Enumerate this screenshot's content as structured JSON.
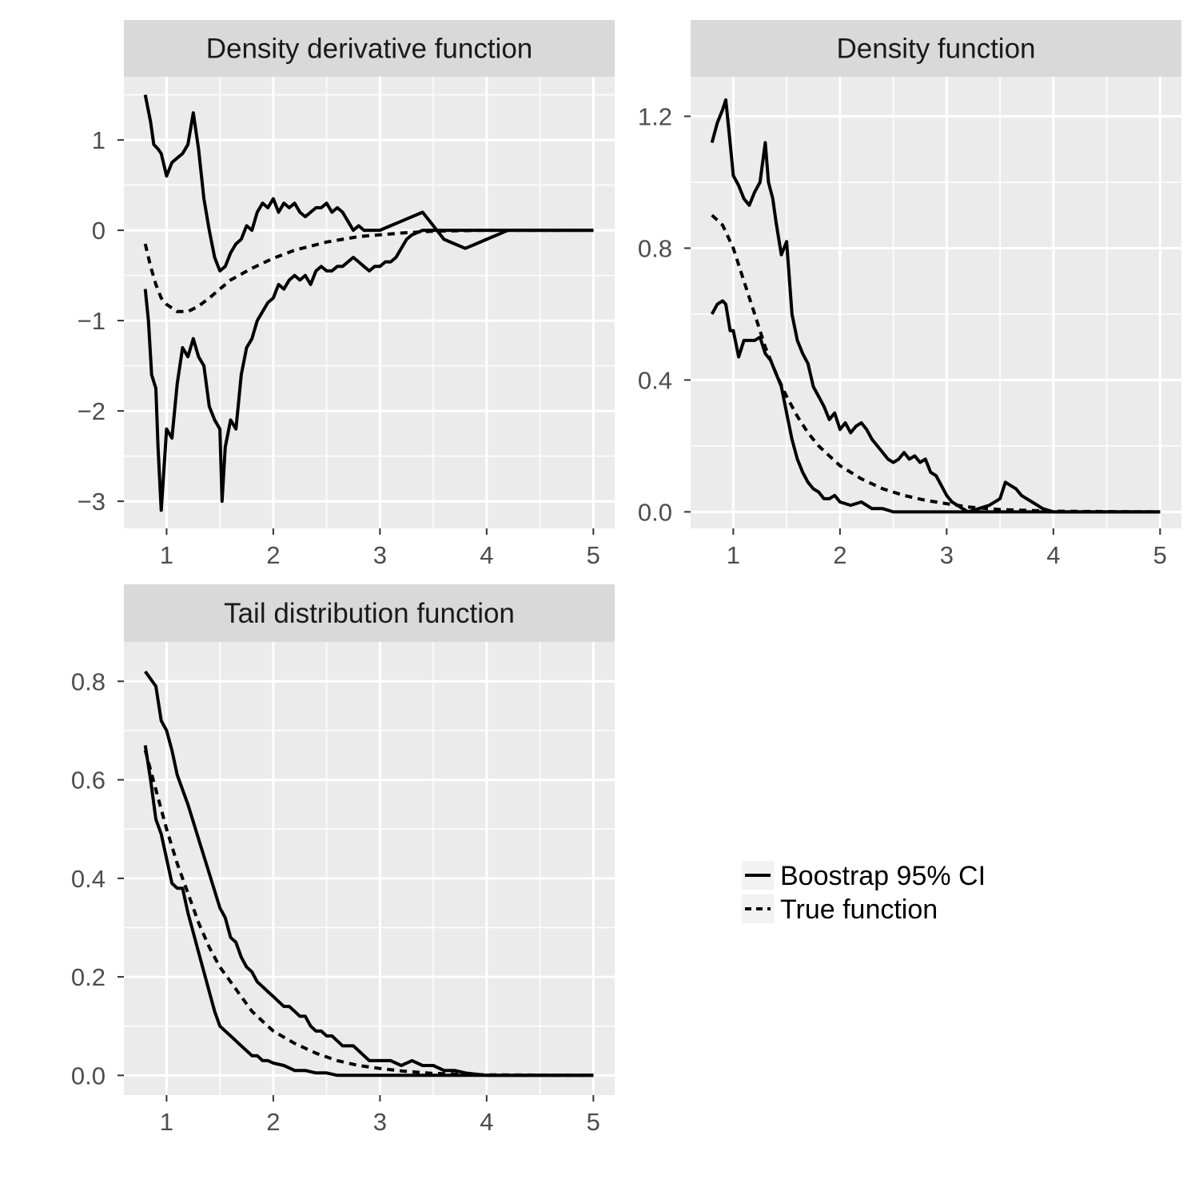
{
  "colors": {
    "panel_background": "#ebebeb",
    "strip_background": "#d9d9d9",
    "grid": "#ffffff",
    "line": "#000000",
    "tick_text": "#4d4d4d"
  },
  "legend": {
    "position": "right",
    "items": [
      {
        "label": "Boostrap 95% CI",
        "linetype": "solid"
      },
      {
        "label": "True function",
        "linetype": "dashed"
      }
    ]
  },
  "chart_data": [
    {
      "type": "line",
      "title": "Density derivative function",
      "xlim": [
        0.6,
        5.2
      ],
      "ylim": [
        -3.3,
        1.7
      ],
      "x_ticks": [
        1,
        2,
        3,
        4,
        5
      ],
      "x_tick_labels": [
        "1",
        "2",
        "3",
        "4",
        "5"
      ],
      "y_ticks": [
        -3,
        -2,
        -1,
        0,
        1
      ],
      "y_tick_labels": [
        "−3",
        "−2",
        "−1",
        "0",
        "1"
      ],
      "grid": true,
      "series": [
        {
          "role": "ci_upper",
          "legend": "Boostrap 95% CI",
          "linetype": "solid",
          "x": [
            0.8,
            0.85,
            0.88,
            0.92,
            0.95,
            1.0,
            1.05,
            1.1,
            1.15,
            1.2,
            1.25,
            1.3,
            1.35,
            1.4,
            1.45,
            1.5,
            1.55,
            1.6,
            1.65,
            1.7,
            1.75,
            1.8,
            1.85,
            1.9,
            1.95,
            2.0,
            2.05,
            2.1,
            2.15,
            2.2,
            2.25,
            2.3,
            2.35,
            2.4,
            2.45,
            2.5,
            2.55,
            2.6,
            2.65,
            2.7,
            2.75,
            2.8,
            2.85,
            2.9,
            2.95,
            3.0,
            3.1,
            3.2,
            3.3,
            3.4,
            3.5,
            3.6,
            3.7,
            3.8,
            3.9,
            4.0,
            4.1,
            4.2,
            4.5,
            5.0
          ],
          "y": [
            1.5,
            1.2,
            0.95,
            0.9,
            0.85,
            0.6,
            0.75,
            0.8,
            0.85,
            0.95,
            1.3,
            0.9,
            0.35,
            0.0,
            -0.3,
            -0.45,
            -0.4,
            -0.25,
            -0.15,
            -0.1,
            0.05,
            0.0,
            0.2,
            0.3,
            0.25,
            0.35,
            0.2,
            0.3,
            0.25,
            0.3,
            0.2,
            0.15,
            0.2,
            0.25,
            0.25,
            0.3,
            0.2,
            0.25,
            0.2,
            0.1,
            0.0,
            0.05,
            0.0,
            0.0,
            0.0,
            0.0,
            0.05,
            0.1,
            0.15,
            0.2,
            0.05,
            -0.1,
            -0.15,
            -0.2,
            -0.15,
            -0.1,
            -0.05,
            0.0,
            0.0,
            0.0
          ]
        },
        {
          "role": "ci_lower",
          "legend": "Boostrap 95% CI",
          "linetype": "solid",
          "x": [
            0.8,
            0.83,
            0.86,
            0.9,
            0.92,
            0.95,
            1.0,
            1.05,
            1.1,
            1.15,
            1.2,
            1.25,
            1.3,
            1.35,
            1.4,
            1.45,
            1.5,
            1.52,
            1.55,
            1.6,
            1.65,
            1.7,
            1.75,
            1.8,
            1.85,
            1.9,
            1.95,
            2.0,
            2.05,
            2.1,
            2.15,
            2.2,
            2.25,
            2.3,
            2.35,
            2.4,
            2.45,
            2.5,
            2.55,
            2.6,
            2.65,
            2.7,
            2.75,
            2.8,
            2.85,
            2.9,
            2.95,
            3.0,
            3.05,
            3.1,
            3.15,
            3.2,
            3.25,
            3.3,
            3.4,
            3.5,
            3.6,
            4.0,
            5.0
          ],
          "y": [
            -0.65,
            -1.0,
            -1.6,
            -1.75,
            -2.4,
            -3.1,
            -2.2,
            -2.3,
            -1.7,
            -1.3,
            -1.4,
            -1.2,
            -1.4,
            -1.5,
            -1.95,
            -2.1,
            -2.2,
            -3.0,
            -2.4,
            -2.1,
            -2.2,
            -1.6,
            -1.3,
            -1.2,
            -1.0,
            -0.9,
            -0.8,
            -0.75,
            -0.6,
            -0.65,
            -0.55,
            -0.5,
            -0.55,
            -0.5,
            -0.6,
            -0.45,
            -0.4,
            -0.45,
            -0.45,
            -0.4,
            -0.4,
            -0.35,
            -0.3,
            -0.35,
            -0.4,
            -0.45,
            -0.4,
            -0.4,
            -0.35,
            -0.35,
            -0.3,
            -0.2,
            -0.1,
            -0.05,
            0.0,
            0.0,
            0.0,
            0.0,
            0.0
          ]
        },
        {
          "role": "true",
          "legend": "True function",
          "linetype": "dashed",
          "x": [
            0.8,
            0.85,
            0.9,
            0.95,
            1.0,
            1.1,
            1.2,
            1.3,
            1.4,
            1.5,
            1.6,
            1.8,
            2.0,
            2.2,
            2.5,
            2.8,
            3.0,
            3.2,
            3.5,
            4.0,
            5.0
          ],
          "y": [
            -0.15,
            -0.4,
            -0.6,
            -0.75,
            -0.82,
            -0.9,
            -0.9,
            -0.84,
            -0.75,
            -0.65,
            -0.55,
            -0.42,
            -0.31,
            -0.22,
            -0.13,
            -0.07,
            -0.05,
            -0.03,
            -0.01,
            0.0,
            0.0
          ]
        }
      ]
    },
    {
      "type": "line",
      "title": "Density function",
      "xlim": [
        0.6,
        5.2
      ],
      "ylim": [
        -0.05,
        1.32
      ],
      "x_ticks": [
        1,
        2,
        3,
        4,
        5
      ],
      "x_tick_labels": [
        "1",
        "2",
        "3",
        "4",
        "5"
      ],
      "y_ticks": [
        0.0,
        0.4,
        0.8,
        1.2
      ],
      "y_tick_labels": [
        "0.0",
        "0.4",
        "0.8",
        "1.2"
      ],
      "grid": true,
      "series": [
        {
          "role": "ci_upper",
          "legend": "Boostrap 95% CI",
          "linetype": "solid",
          "x": [
            0.8,
            0.85,
            0.9,
            0.93,
            0.97,
            1.0,
            1.05,
            1.1,
            1.15,
            1.2,
            1.25,
            1.3,
            1.33,
            1.37,
            1.4,
            1.45,
            1.5,
            1.55,
            1.6,
            1.65,
            1.7,
            1.75,
            1.8,
            1.85,
            1.9,
            1.95,
            2.0,
            2.05,
            2.1,
            2.15,
            2.2,
            2.25,
            2.3,
            2.35,
            2.4,
            2.45,
            2.5,
            2.55,
            2.6,
            2.65,
            2.7,
            2.75,
            2.8,
            2.85,
            2.9,
            2.95,
            3.0,
            3.05,
            3.1,
            3.15,
            3.2,
            3.3,
            4.0,
            5.0
          ],
          "y": [
            1.12,
            1.18,
            1.22,
            1.25,
            1.12,
            1.02,
            0.99,
            0.95,
            0.93,
            0.97,
            1.0,
            1.12,
            1.0,
            0.95,
            0.88,
            0.78,
            0.82,
            0.6,
            0.52,
            0.48,
            0.45,
            0.38,
            0.35,
            0.32,
            0.28,
            0.3,
            0.25,
            0.27,
            0.24,
            0.26,
            0.27,
            0.25,
            0.22,
            0.2,
            0.18,
            0.16,
            0.15,
            0.16,
            0.18,
            0.16,
            0.17,
            0.15,
            0.16,
            0.12,
            0.11,
            0.08,
            0.05,
            0.03,
            0.02,
            0.01,
            0.0,
            0.0,
            0.0,
            0.0
          ]
        },
        {
          "role": "ci_lower",
          "legend": "Boostrap 95% CI",
          "linetype": "solid",
          "x": [
            0.8,
            0.85,
            0.9,
            0.93,
            0.97,
            1.0,
            1.05,
            1.1,
            1.15,
            1.2,
            1.25,
            1.3,
            1.35,
            1.4,
            1.45,
            1.5,
            1.55,
            1.6,
            1.65,
            1.7,
            1.75,
            1.8,
            1.85,
            1.9,
            1.95,
            2.0,
            2.1,
            2.2,
            2.3,
            2.4,
            2.5,
            2.7,
            3.0,
            3.2,
            3.3,
            3.4,
            3.5,
            3.55,
            3.6,
            3.65,
            3.7,
            3.75,
            3.8,
            3.85,
            3.9,
            4.0,
            5.0
          ],
          "y": [
            0.6,
            0.63,
            0.64,
            0.63,
            0.55,
            0.55,
            0.47,
            0.52,
            0.52,
            0.52,
            0.53,
            0.48,
            0.46,
            0.42,
            0.38,
            0.3,
            0.22,
            0.16,
            0.12,
            0.09,
            0.07,
            0.06,
            0.04,
            0.04,
            0.05,
            0.03,
            0.02,
            0.03,
            0.01,
            0.01,
            0.0,
            0.0,
            0.0,
            0.0,
            0.01,
            0.02,
            0.04,
            0.09,
            0.08,
            0.07,
            0.05,
            0.04,
            0.03,
            0.02,
            0.01,
            0.0,
            0.0
          ]
        },
        {
          "role": "true",
          "legend": "True function",
          "linetype": "dashed",
          "x": [
            0.8,
            0.9,
            1.0,
            1.1,
            1.2,
            1.3,
            1.4,
            1.5,
            1.6,
            1.7,
            1.8,
            1.9,
            2.0,
            2.2,
            2.4,
            2.6,
            2.8,
            3.0,
            3.2,
            3.5,
            4.0,
            5.0
          ],
          "y": [
            0.9,
            0.87,
            0.8,
            0.7,
            0.6,
            0.5,
            0.42,
            0.35,
            0.29,
            0.24,
            0.2,
            0.17,
            0.14,
            0.1,
            0.07,
            0.05,
            0.035,
            0.025,
            0.015,
            0.007,
            0.002,
            0.0
          ]
        }
      ]
    },
    {
      "type": "line",
      "title": "Tail distribution function",
      "xlim": [
        0.6,
        5.2
      ],
      "ylim": [
        -0.04,
        0.88
      ],
      "x_ticks": [
        1,
        2,
        3,
        4,
        5
      ],
      "x_tick_labels": [
        "1",
        "2",
        "3",
        "4",
        "5"
      ],
      "y_ticks": [
        0.0,
        0.2,
        0.4,
        0.6,
        0.8
      ],
      "y_tick_labels": [
        "0.0",
        "0.2",
        "0.4",
        "0.6",
        "0.8"
      ],
      "grid": true,
      "series": [
        {
          "role": "ci_upper",
          "legend": "Boostrap 95% CI",
          "linetype": "solid",
          "x": [
            0.8,
            0.9,
            0.95,
            1.0,
            1.05,
            1.1,
            1.15,
            1.2,
            1.3,
            1.4,
            1.5,
            1.55,
            1.6,
            1.65,
            1.7,
            1.75,
            1.8,
            1.85,
            1.9,
            1.95,
            2.0,
            2.05,
            2.1,
            2.15,
            2.2,
            2.25,
            2.3,
            2.35,
            2.4,
            2.45,
            2.5,
            2.55,
            2.6,
            2.65,
            2.7,
            2.75,
            2.8,
            2.85,
            2.9,
            2.95,
            3.0,
            3.1,
            3.2,
            3.3,
            3.4,
            3.5,
            3.6,
            3.7,
            3.8,
            4.0,
            4.5,
            5.0
          ],
          "y": [
            0.82,
            0.79,
            0.72,
            0.7,
            0.66,
            0.61,
            0.58,
            0.55,
            0.48,
            0.41,
            0.34,
            0.32,
            0.28,
            0.27,
            0.24,
            0.22,
            0.21,
            0.19,
            0.18,
            0.17,
            0.16,
            0.15,
            0.14,
            0.14,
            0.13,
            0.12,
            0.12,
            0.1,
            0.09,
            0.09,
            0.08,
            0.08,
            0.07,
            0.06,
            0.06,
            0.06,
            0.05,
            0.04,
            0.03,
            0.03,
            0.03,
            0.03,
            0.02,
            0.03,
            0.02,
            0.02,
            0.01,
            0.01,
            0.005,
            0.0,
            0.0,
            0.0
          ]
        },
        {
          "role": "ci_lower",
          "legend": "Boostrap 95% CI",
          "linetype": "solid",
          "x": [
            0.8,
            0.85,
            0.9,
            0.95,
            1.0,
            1.05,
            1.1,
            1.15,
            1.2,
            1.25,
            1.3,
            1.35,
            1.4,
            1.45,
            1.5,
            1.55,
            1.6,
            1.65,
            1.7,
            1.75,
            1.8,
            1.85,
            1.9,
            1.95,
            2.0,
            2.1,
            2.2,
            2.3,
            2.4,
            2.5,
            2.6,
            3.0,
            5.0
          ],
          "y": [
            0.67,
            0.6,
            0.52,
            0.49,
            0.44,
            0.39,
            0.38,
            0.38,
            0.33,
            0.29,
            0.25,
            0.21,
            0.17,
            0.13,
            0.1,
            0.09,
            0.08,
            0.07,
            0.06,
            0.05,
            0.04,
            0.04,
            0.03,
            0.03,
            0.025,
            0.02,
            0.01,
            0.01,
            0.005,
            0.005,
            0.0,
            0.0,
            0.0
          ]
        },
        {
          "role": "true",
          "legend": "True function",
          "linetype": "dashed",
          "x": [
            0.8,
            0.9,
            1.0,
            1.1,
            1.2,
            1.3,
            1.4,
            1.5,
            1.6,
            1.7,
            1.8,
            1.9,
            2.0,
            2.2,
            2.4,
            2.6,
            2.8,
            3.0,
            3.2,
            3.5,
            4.0,
            5.0
          ],
          "y": [
            0.66,
            0.58,
            0.5,
            0.43,
            0.37,
            0.31,
            0.26,
            0.22,
            0.19,
            0.16,
            0.13,
            0.11,
            0.09,
            0.065,
            0.045,
            0.03,
            0.02,
            0.014,
            0.009,
            0.004,
            0.001,
            0.0
          ]
        }
      ]
    }
  ]
}
